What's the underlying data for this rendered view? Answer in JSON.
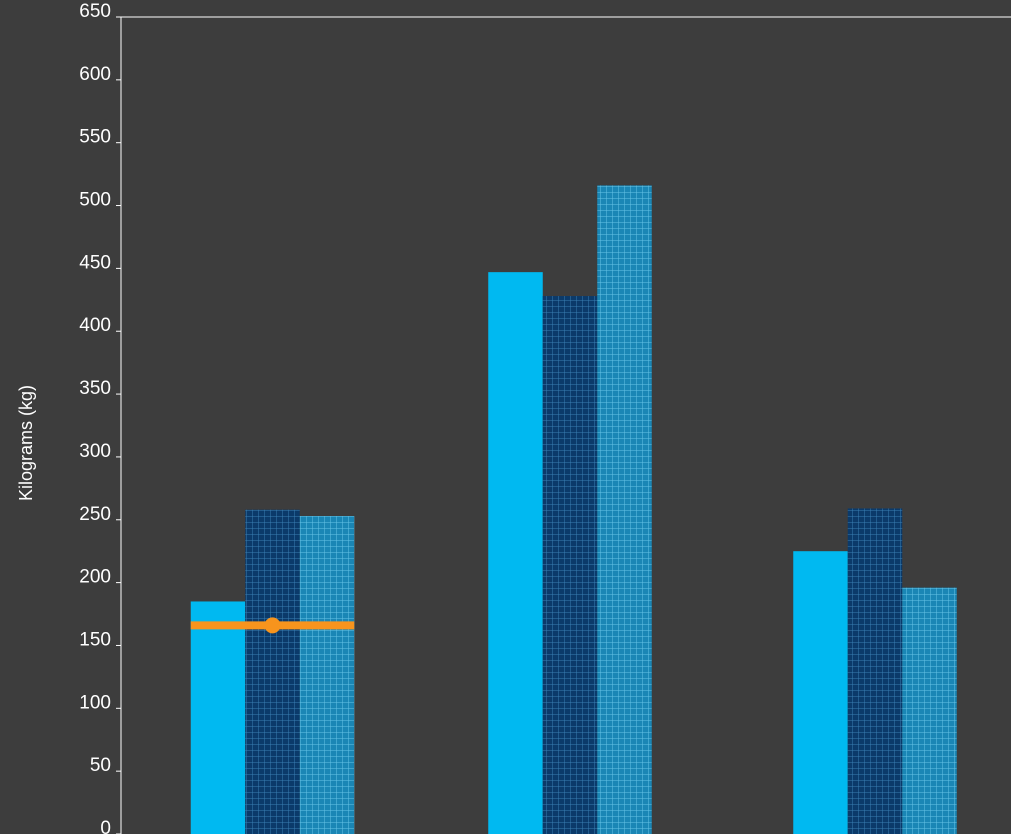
{
  "chart_data": {
    "type": "bar",
    "title": "",
    "xlabel": "",
    "ylabel": "Kilograms (kg)",
    "ylim": [
      0,
      650
    ],
    "y_ticks": [
      0,
      50,
      100,
      150,
      200,
      250,
      300,
      350,
      400,
      450,
      500,
      550,
      600,
      650
    ],
    "y_tick_labels": [
      "0",
      "50",
      "100",
      "150",
      "200",
      "250",
      "300",
      "350",
      "400",
      "450",
      "500",
      "550",
      "600",
      "650"
    ],
    "grid": false,
    "categories": [
      "",
      "",
      ""
    ],
    "series": [
      {
        "values": [
          185,
          447,
          225
        ],
        "color": "#00b9f1",
        "fill": "solid"
      },
      {
        "values": [
          258,
          428,
          259
        ],
        "color": "#0b3a6a",
        "fill": "crosshatch"
      },
      {
        "values": [
          253,
          516,
          196
        ],
        "color": "#1a86b5",
        "fill": "crosshatch"
      }
    ],
    "reference_lines": [
      {
        "category_index": 0,
        "value": 166,
        "color": "#f7941d",
        "marker": "circle"
      }
    ]
  },
  "colors": {
    "background": "#3d3d3d",
    "axis": "#ffffff",
    "text": "#ffffff"
  }
}
